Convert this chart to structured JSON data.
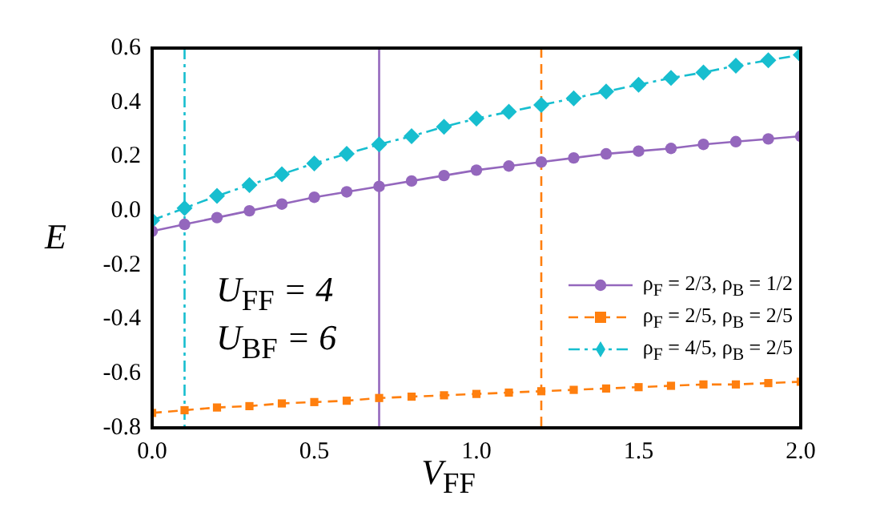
{
  "chart_data": {
    "type": "line",
    "xlabel": "V$_{FF}$",
    "ylabel": "E",
    "x": [
      0,
      0.1,
      0.2,
      0.3,
      0.4,
      0.5,
      0.6,
      0.7,
      0.8,
      0.9,
      1.0,
      1.1,
      1.2,
      1.3,
      1.4,
      1.5,
      1.6,
      1.7,
      1.8,
      1.9,
      2.0
    ],
    "series": [
      {
        "name": "ρ$_{F}$ = 2/3, ρ$_{B}$ = 1/2",
        "color": "#9467bd",
        "marker": "circle",
        "line_style": "solid",
        "values": [
          -0.075,
          -0.05,
          -0.025,
          0.0,
          0.025,
          0.05,
          0.07,
          0.09,
          0.11,
          0.13,
          0.15,
          0.165,
          0.18,
          0.195,
          0.21,
          0.22,
          0.23,
          0.245,
          0.255,
          0.265,
          0.275
        ]
      },
      {
        "name": "ρ$_{F}$ = 2/5, ρ$_{B}$ = 2/5",
        "color": "#ff7f0e",
        "marker": "square",
        "line_style": "dashed",
        "values": [
          -0.745,
          -0.735,
          -0.725,
          -0.72,
          -0.71,
          -0.705,
          -0.7,
          -0.69,
          -0.685,
          -0.68,
          -0.675,
          -0.67,
          -0.665,
          -0.66,
          -0.655,
          -0.65,
          -0.645,
          -0.64,
          -0.64,
          -0.635,
          -0.63
        ]
      },
      {
        "name": "ρ$_{F}$ = 4/5, ρ$_{B}$ = 2/5",
        "color": "#17becf",
        "marker": "diamond",
        "line_style": "dashdot",
        "values": [
          -0.035,
          0.01,
          0.055,
          0.095,
          0.135,
          0.175,
          0.21,
          0.245,
          0.275,
          0.31,
          0.34,
          0.365,
          0.39,
          0.415,
          0.44,
          0.465,
          0.49,
          0.51,
          0.535,
          0.555,
          0.575
        ]
      }
    ],
    "xlim": [
      0,
      2
    ],
    "xticks": [
      {
        "value": 0,
        "label": "0.0"
      },
      {
        "value": 0.5,
        "label": "0.5"
      },
      {
        "value": 1,
        "label": "1.0"
      },
      {
        "value": 1.5,
        "label": "1.5"
      },
      {
        "value": 2,
        "label": "2.0"
      }
    ],
    "ylim": [
      -0.8,
      0.6
    ],
    "yticks": [
      {
        "value": -0.8,
        "label": "-0.8"
      },
      {
        "value": -0.6,
        "label": "-0.6"
      },
      {
        "value": -0.4,
        "label": "-0.4"
      },
      {
        "value": -0.2,
        "label": "-0.2"
      },
      {
        "value": 0,
        "label": "0.0"
      },
      {
        "value": 0.2,
        "label": "0.2"
      },
      {
        "value": 0.4,
        "label": "0.4"
      },
      {
        "value": 0.6,
        "label": "0.6"
      }
    ],
    "ref_lines": [
      {
        "axis": "x",
        "value": 0.1,
        "color": "#17becf",
        "line_style": "dashdot"
      },
      {
        "axis": "x",
        "value": 0.7,
        "color": "#9467bd",
        "line_style": "solid"
      },
      {
        "axis": "x",
        "value": 1.2,
        "color": "#ff7f0e",
        "line_style": "dashed"
      }
    ],
    "annotations": [
      "U$_{FF}$ = 4",
      "U$_{BF}$ = 6"
    ],
    "grid": false,
    "legend": "right"
  }
}
